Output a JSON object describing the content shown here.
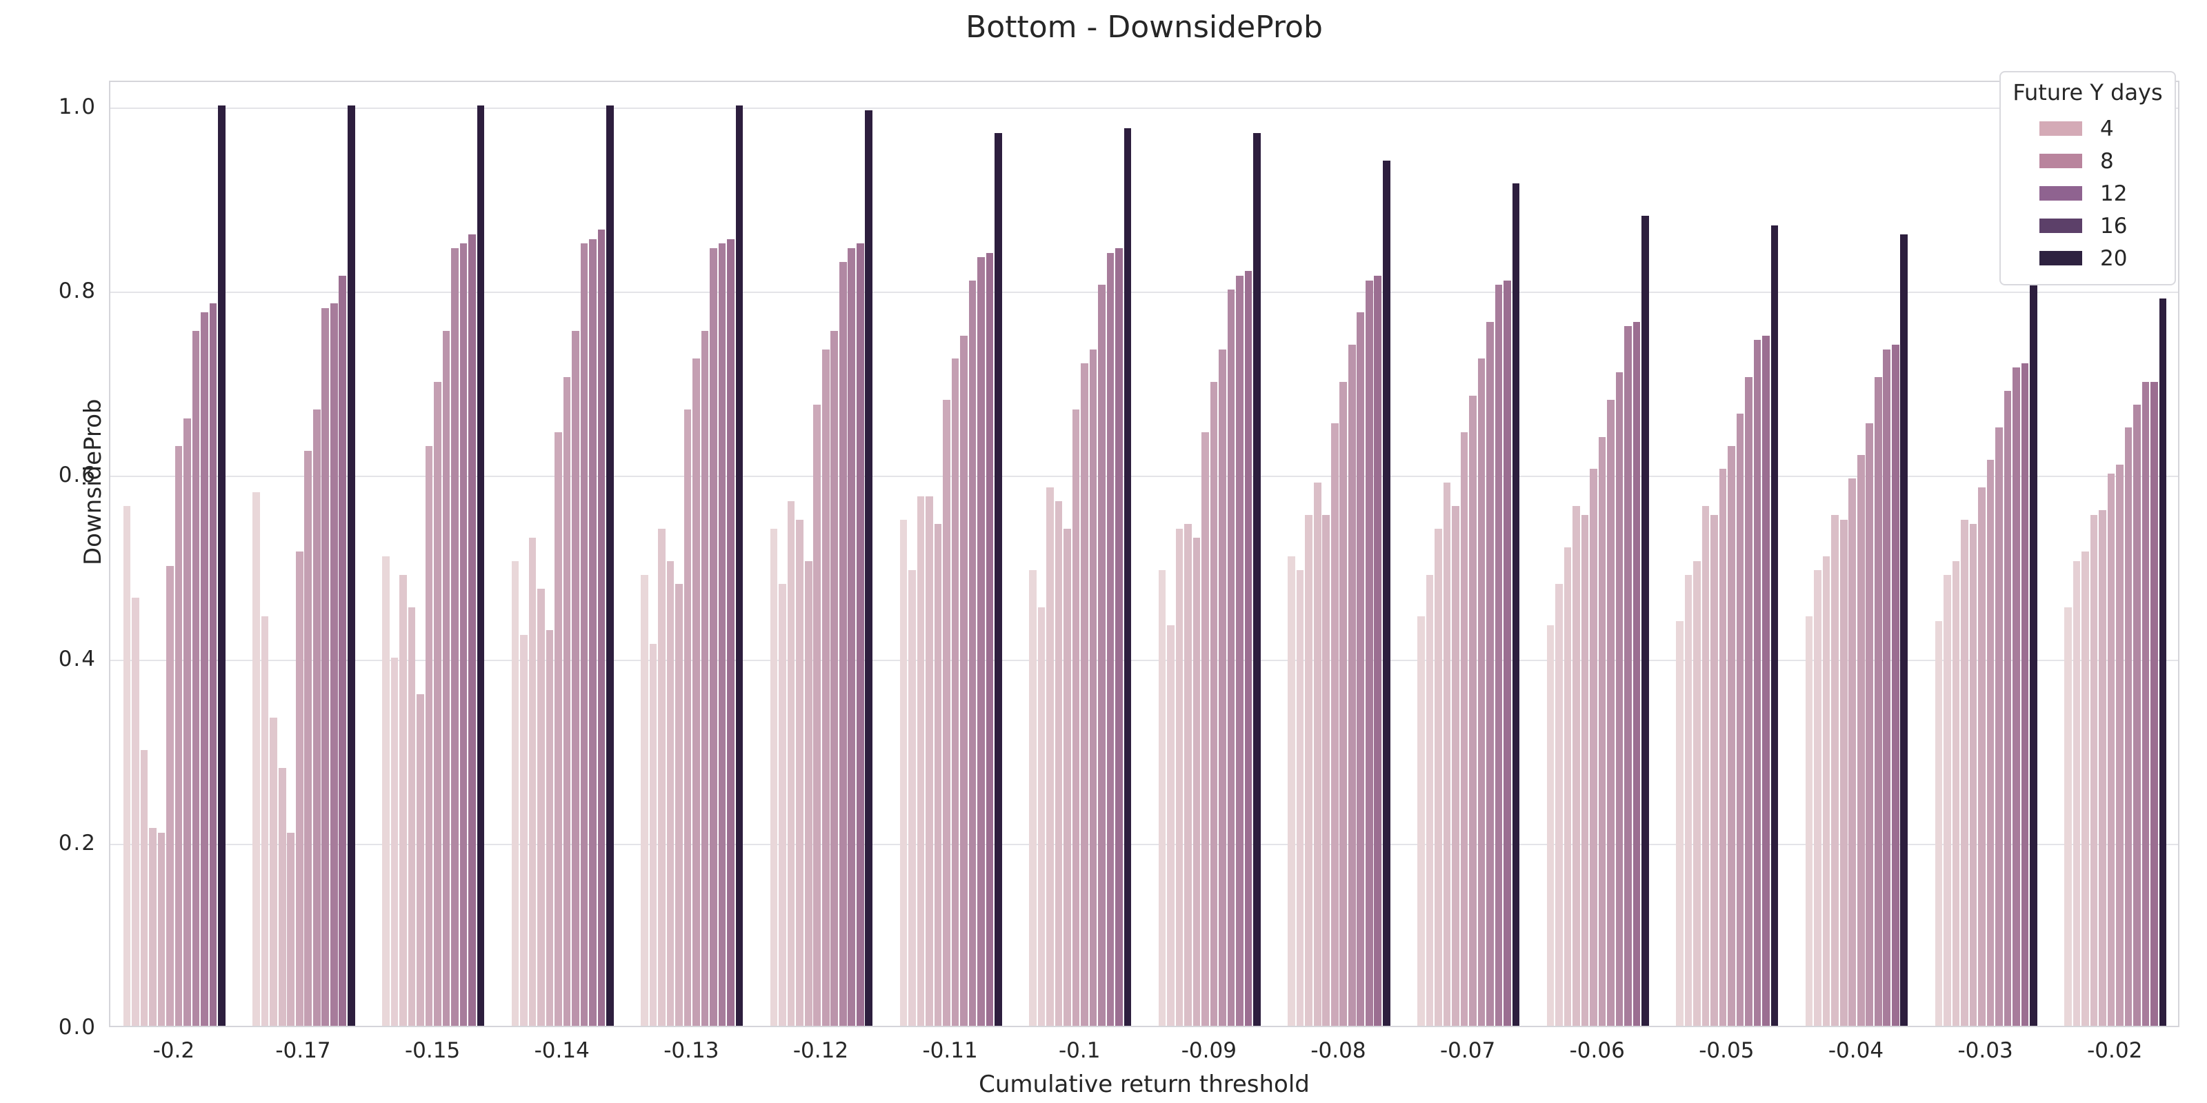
{
  "title": "Bottom - DownsideProb",
  "x_axis": {
    "label": "Cumulative return threshold",
    "tick_labels": [
      "-0.2",
      "-0.17",
      "-0.15",
      "-0.14",
      "-0.13",
      "-0.12",
      "-0.11",
      "-0.1",
      "-0.09",
      "-0.08",
      "-0.07",
      "-0.06",
      "-0.05",
      "-0.04",
      "-0.03",
      "-0.02"
    ]
  },
  "y_axis": {
    "label": "DownsideProb",
    "tick_labels": [
      "0.0",
      "0.2",
      "0.4",
      "0.6",
      "0.8",
      "1.0"
    ],
    "tick_values": [
      0.0,
      0.2,
      0.4,
      0.6,
      0.8,
      1.0
    ]
  },
  "legend": {
    "title": "Future Y days",
    "entries": [
      {
        "label": "4",
        "color": "#d4aab6"
      },
      {
        "label": "8",
        "color": "#b9849d"
      },
      {
        "label": "12",
        "color": "#8f6390"
      },
      {
        "label": "16",
        "color": "#5c4069"
      },
      {
        "label": "20",
        "color": "#2e2240"
      }
    ]
  },
  "chart_data": {
    "type": "bar",
    "title": "Bottom - DownsideProb",
    "xlabel": "Cumulative return threshold",
    "ylabel": "DownsideProb",
    "ylim": [
      0.0,
      1.05
    ],
    "grid": true,
    "legend_position": "upper right",
    "hue_title": "Future Y days",
    "hue_legend_labels": [
      "4",
      "8",
      "12",
      "16",
      "20"
    ],
    "bars_per_group": 12,
    "bar_colors": [
      "#e9d7d9",
      "#e5cfd4",
      "#e0c7cd",
      "#dabec7",
      "#d3b4c0",
      "#cca9b9",
      "#c49fb2",
      "#bb94ab",
      "#b188a3",
      "#a77c9b",
      "#9b6e91",
      "#2d1e3e"
    ],
    "categories": [
      "-0.2",
      "-0.17",
      "-0.15",
      "-0.14",
      "-0.13",
      "-0.12",
      "-0.11",
      "-0.1",
      "-0.09",
      "-0.08",
      "-0.07",
      "-0.06",
      "-0.05",
      "-0.04",
      "-0.03",
      "-0.02"
    ],
    "groups": [
      {
        "category": "-0.2",
        "values": [
          0.565,
          0.465,
          0.3,
          0.215,
          0.21,
          0.5,
          0.63,
          0.66,
          0.755,
          0.775,
          0.785,
          1.0
        ]
      },
      {
        "category": "-0.17",
        "values": [
          0.58,
          0.445,
          0.335,
          0.28,
          0.21,
          0.515,
          0.625,
          0.67,
          0.78,
          0.785,
          0.815,
          1.0
        ]
      },
      {
        "category": "-0.15",
        "values": [
          0.51,
          0.4,
          0.49,
          0.455,
          0.36,
          0.63,
          0.7,
          0.755,
          0.845,
          0.85,
          0.86,
          1.0
        ]
      },
      {
        "category": "-0.14",
        "values": [
          0.505,
          0.425,
          0.53,
          0.475,
          0.43,
          0.645,
          0.705,
          0.755,
          0.85,
          0.855,
          0.865,
          1.0
        ]
      },
      {
        "category": "-0.13",
        "values": [
          0.49,
          0.415,
          0.54,
          0.505,
          0.48,
          0.67,
          0.725,
          0.755,
          0.845,
          0.85,
          0.855,
          1.0
        ]
      },
      {
        "category": "-0.12",
        "values": [
          0.54,
          0.48,
          0.57,
          0.55,
          0.505,
          0.675,
          0.735,
          0.755,
          0.83,
          0.845,
          0.85,
          0.995
        ]
      },
      {
        "category": "-0.11",
        "values": [
          0.55,
          0.495,
          0.575,
          0.575,
          0.545,
          0.68,
          0.725,
          0.75,
          0.81,
          0.835,
          0.84,
          0.97
        ]
      },
      {
        "category": "-0.1",
        "values": [
          0.495,
          0.455,
          0.585,
          0.57,
          0.54,
          0.67,
          0.72,
          0.735,
          0.805,
          0.84,
          0.845,
          0.975
        ]
      },
      {
        "category": "-0.09",
        "values": [
          0.495,
          0.435,
          0.54,
          0.545,
          0.53,
          0.645,
          0.7,
          0.735,
          0.8,
          0.815,
          0.82,
          0.97
        ]
      },
      {
        "category": "-0.08",
        "values": [
          0.51,
          0.495,
          0.555,
          0.59,
          0.555,
          0.655,
          0.7,
          0.74,
          0.775,
          0.81,
          0.815,
          0.94
        ]
      },
      {
        "category": "-0.07",
        "values": [
          0.445,
          0.49,
          0.54,
          0.59,
          0.565,
          0.645,
          0.685,
          0.725,
          0.765,
          0.805,
          0.81,
          0.915
        ]
      },
      {
        "category": "-0.06",
        "values": [
          0.435,
          0.48,
          0.52,
          0.565,
          0.555,
          0.605,
          0.64,
          0.68,
          0.71,
          0.76,
          0.765,
          0.88
        ]
      },
      {
        "category": "-0.05",
        "values": [
          0.44,
          0.49,
          0.505,
          0.565,
          0.555,
          0.605,
          0.63,
          0.665,
          0.705,
          0.745,
          0.75,
          0.87
        ]
      },
      {
        "category": "-0.04",
        "values": [
          0.445,
          0.495,
          0.51,
          0.555,
          0.55,
          0.595,
          0.62,
          0.655,
          0.705,
          0.735,
          0.74,
          0.86
        ]
      },
      {
        "category": "-0.03",
        "values": [
          0.44,
          0.49,
          0.505,
          0.55,
          0.545,
          0.585,
          0.615,
          0.65,
          0.69,
          0.715,
          0.72,
          0.815
        ]
      },
      {
        "category": "-0.02",
        "values": [
          0.455,
          0.505,
          0.515,
          0.555,
          0.56,
          0.6,
          0.61,
          0.65,
          0.675,
          0.7,
          0.7,
          0.79
        ]
      }
    ]
  },
  "layout_colors": {
    "grid": "#e4e4e8",
    "spine": "#d5d5da",
    "text": "#262626",
    "background": "#ffffff"
  }
}
